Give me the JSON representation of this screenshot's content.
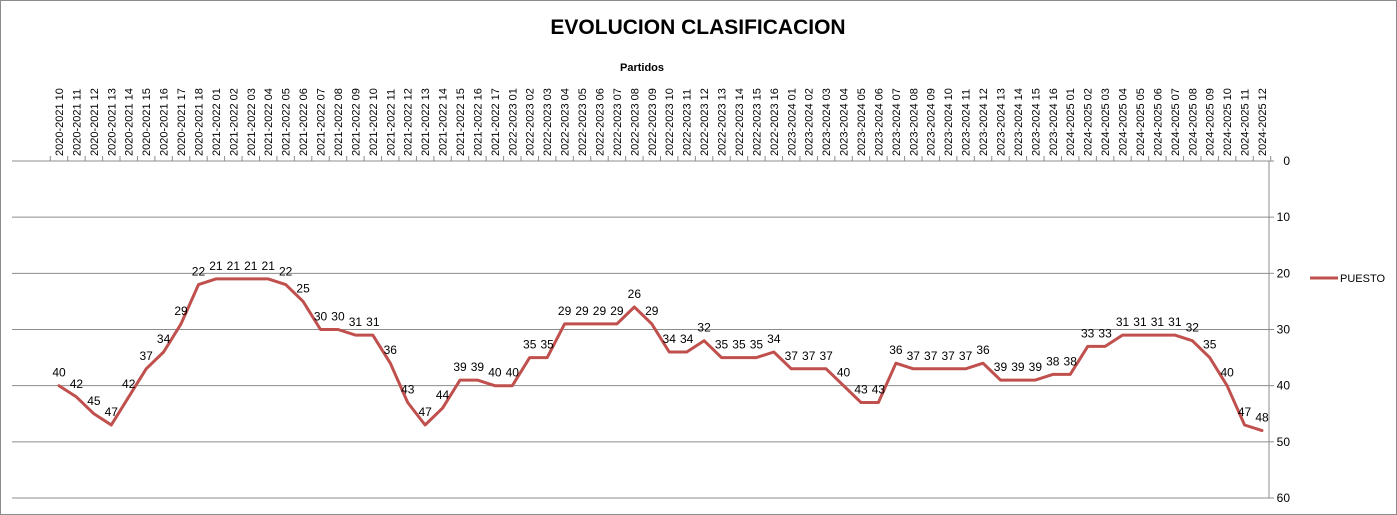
{
  "chart_data": {
    "type": "line",
    "title": "EVOLUCION CLASIFICACION",
    "xlabel": "Partidos",
    "ylabel": "",
    "ylim": [
      0,
      60
    ],
    "y_reversed": true,
    "y_ticks": [
      0,
      10,
      20,
      30,
      40,
      50,
      60
    ],
    "x_axis_position": "top",
    "y_axis_position": "right",
    "grid": true,
    "legend_position": "right",
    "line_color": "#c0504d",
    "categories": [
      "2020-2021 10",
      "2020-2021 11",
      "2020-2021 12",
      "2020-2021 13",
      "2020-2021 14",
      "2020-2021 15",
      "2020-2021 16",
      "2020-2021 17",
      "2020-2021 18",
      "2021-2022 01",
      "2021-2022 02",
      "2021-2022 03",
      "2021-2022 04",
      "2021-2022 05",
      "2021-2022 06",
      "2021-2022 07",
      "2021-2022 08",
      "2021-2022 09",
      "2021-2022 10",
      "2021-2022 11",
      "2021-2022 12",
      "2021-2022 13",
      "2021-2022 14",
      "2021-2022 15",
      "2021-2022 16",
      "2021-2022 17",
      "2022-2023 01",
      "2022-2023 02",
      "2022-2023 03",
      "2022-2023 04",
      "2022-2023 05",
      "2022-2023 06",
      "2022-2023 07",
      "2022-2023 08",
      "2022-2023 09",
      "2022-2023 10",
      "2022-2023 11",
      "2022-2023 12",
      "2022-2023 13",
      "2022-2023 14",
      "2022-2023 15",
      "2022-2023 16",
      "2023-2024 01",
      "2023-2024 02",
      "2023-2024 03",
      "2023-2024 04",
      "2023-2024 05",
      "2023-2024 06",
      "2023-2024 07",
      "2023-2024 08",
      "2023-2024 09",
      "2023-2024 10",
      "2023-2024 11",
      "2023-2024 12",
      "2023-2024 13",
      "2023-2024 14",
      "2023-2024 15",
      "2023-2024 16",
      "2024-2025 01",
      "2024-2025 02",
      "2024-2025 03",
      "2024-2025 04",
      "2024-2025 05",
      "2024-2025 06",
      "2024-2025 07",
      "2024-2025 08",
      "2024-2025 09",
      "2024-2025 10",
      "2024-2025 11",
      "2024-2025 12"
    ],
    "series": [
      {
        "name": "PUESTO",
        "values": [
          40,
          42,
          45,
          47,
          42,
          37,
          34,
          29,
          22,
          21,
          21,
          21,
          21,
          22,
          25,
          30,
          30,
          31,
          31,
          36,
          43,
          47,
          44,
          39,
          39,
          40,
          40,
          35,
          35,
          29,
          29,
          29,
          29,
          26,
          29,
          34,
          34,
          32,
          35,
          35,
          35,
          34,
          37,
          37,
          37,
          40,
          43,
          43,
          36,
          37,
          37,
          37,
          37,
          36,
          39,
          39,
          39,
          38,
          38,
          33,
          33,
          31,
          31,
          31,
          31,
          32,
          35,
          40,
          47,
          48
        ]
      }
    ]
  }
}
